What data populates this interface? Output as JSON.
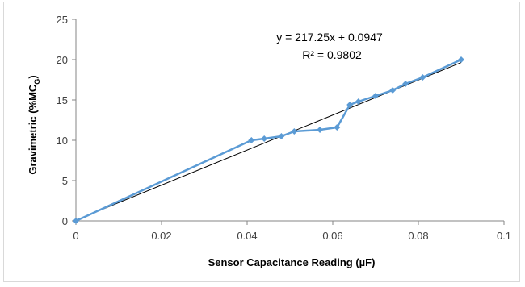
{
  "chart_data": {
    "type": "scatter",
    "title": "",
    "xlabel": "Sensor Capacitance Reading (µF)",
    "ylabel_main": "Gravimetric (%MC",
    "ylabel_sub": "G",
    "ylabel_close": ")",
    "xlim": [
      0,
      0.1
    ],
    "ylim": [
      0,
      25
    ],
    "x_ticks": [
      "0",
      "0.02",
      "0.04",
      "0.06",
      "0.08",
      "0.1"
    ],
    "y_ticks": [
      "0",
      "5",
      "10",
      "15",
      "20",
      "25"
    ],
    "x_tick_values": [
      0,
      0.02,
      0.04,
      0.06,
      0.08,
      0.1
    ],
    "y_tick_values": [
      0,
      5,
      10,
      15,
      20,
      25
    ],
    "series": [
      {
        "x": [
          0,
          0.041,
          0.044,
          0.048,
          0.051,
          0.057,
          0.061,
          0.064,
          0.066,
          0.07,
          0.074,
          0.077,
          0.081,
          0.09
        ],
        "y": [
          0,
          10.0,
          10.2,
          10.5,
          11.1,
          11.3,
          11.6,
          14.4,
          14.8,
          15.5,
          16.2,
          17.0,
          17.8,
          20.0
        ],
        "color": "#5b9bd5",
        "marker": "diamond"
      }
    ],
    "trendline": {
      "type": "linear",
      "slope": 217.25,
      "intercept": 0.0947,
      "x_range": [
        0,
        0.09
      ],
      "color": "#000000"
    },
    "annotations": {
      "equation": "y = 217.25x + 0.0947",
      "r_squared": "R² = 0.9802"
    },
    "grid": false,
    "legend": "none"
  }
}
